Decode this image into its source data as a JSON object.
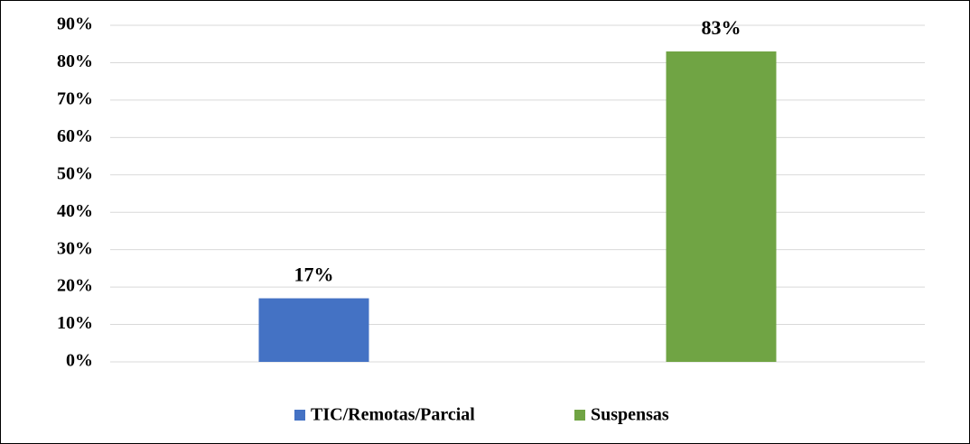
{
  "chart_data": {
    "type": "bar",
    "categories": [
      "TIC/Remotas/Parcial",
      "Suspensas"
    ],
    "values": [
      17,
      83
    ],
    "value_labels": [
      "17%",
      "83%"
    ],
    "colors": [
      "#4472c4",
      "#70a444"
    ],
    "ylim": [
      0,
      90
    ],
    "yticks": [
      {
        "value": 0,
        "label": "0%"
      },
      {
        "value": 10,
        "label": "10%"
      },
      {
        "value": 20,
        "label": "20%"
      },
      {
        "value": 30,
        "label": "30%"
      },
      {
        "value": 40,
        "label": "40%"
      },
      {
        "value": 50,
        "label": "50%"
      },
      {
        "value": 60,
        "label": "60%"
      },
      {
        "value": 70,
        "label": "70%"
      },
      {
        "value": 80,
        "label": "80%"
      },
      {
        "value": 90,
        "label": "90%"
      }
    ],
    "grid": true,
    "legend": "bottom"
  }
}
